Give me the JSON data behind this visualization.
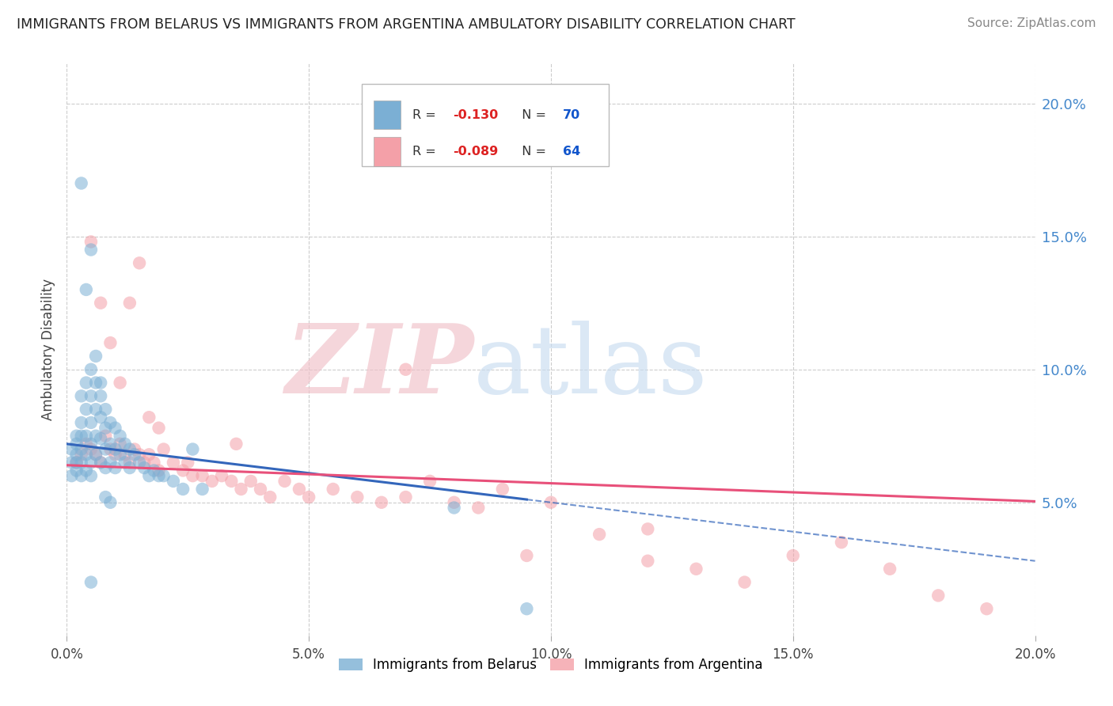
{
  "title": "IMMIGRANTS FROM BELARUS VS IMMIGRANTS FROM ARGENTINA AMBULATORY DISABILITY CORRELATION CHART",
  "source": "Source: ZipAtlas.com",
  "ylabel": "Ambulatory Disability",
  "xlim": [
    0.0,
    0.2
  ],
  "ylim": [
    0.0,
    0.215
  ],
  "xticks": [
    0.0,
    0.05,
    0.1,
    0.15,
    0.2
  ],
  "xticklabels": [
    "0.0%",
    "5.0%",
    "10.0%",
    "15.0%",
    "20.0%"
  ],
  "yticks_right": [
    0.05,
    0.1,
    0.15,
    0.2
  ],
  "ytick_labels_right": [
    "5.0%",
    "10.0%",
    "15.0%",
    "20.0%"
  ],
  "blue_color": "#7BAFD4",
  "pink_color": "#F4A0A8",
  "blue_line_color": "#3366BB",
  "pink_line_color": "#E8507A",
  "blue_R": -0.13,
  "blue_N": 70,
  "pink_R": -0.089,
  "pink_N": 64,
  "blue_intercept": 0.072,
  "blue_slope": -0.22,
  "pink_intercept": 0.064,
  "pink_slope": -0.068,
  "watermark_zip": "ZIP",
  "watermark_atlas": "atlas",
  "background_color": "#ffffff",
  "grid_color": "#cccccc",
  "right_axis_color": "#4488CC",
  "legend_label_blue": "Immigrants from Belarus",
  "legend_label_pink": "Immigrants from Argentina",
  "blue_scatter_x": [
    0.001,
    0.001,
    0.001,
    0.002,
    0.002,
    0.002,
    0.002,
    0.002,
    0.003,
    0.003,
    0.003,
    0.003,
    0.003,
    0.003,
    0.004,
    0.004,
    0.004,
    0.004,
    0.004,
    0.005,
    0.005,
    0.005,
    0.005,
    0.005,
    0.005,
    0.006,
    0.006,
    0.006,
    0.006,
    0.007,
    0.007,
    0.007,
    0.007,
    0.008,
    0.008,
    0.008,
    0.008,
    0.009,
    0.009,
    0.009,
    0.01,
    0.01,
    0.01,
    0.011,
    0.011,
    0.012,
    0.012,
    0.013,
    0.013,
    0.014,
    0.015,
    0.016,
    0.017,
    0.018,
    0.019,
    0.02,
    0.022,
    0.024,
    0.026,
    0.028,
    0.003,
    0.004,
    0.005,
    0.006,
    0.007,
    0.008,
    0.009,
    0.08,
    0.095,
    0.005
  ],
  "blue_scatter_y": [
    0.07,
    0.065,
    0.06,
    0.075,
    0.072,
    0.068,
    0.065,
    0.062,
    0.09,
    0.08,
    0.075,
    0.07,
    0.065,
    0.06,
    0.095,
    0.085,
    0.075,
    0.068,
    0.062,
    0.1,
    0.09,
    0.08,
    0.072,
    0.065,
    0.06,
    0.095,
    0.085,
    0.075,
    0.068,
    0.09,
    0.082,
    0.074,
    0.065,
    0.085,
    0.078,
    0.07,
    0.063,
    0.08,
    0.072,
    0.065,
    0.078,
    0.07,
    0.063,
    0.075,
    0.068,
    0.072,
    0.065,
    0.07,
    0.063,
    0.068,
    0.065,
    0.063,
    0.06,
    0.062,
    0.06,
    0.06,
    0.058,
    0.055,
    0.07,
    0.055,
    0.17,
    0.13,
    0.145,
    0.105,
    0.095,
    0.052,
    0.05,
    0.048,
    0.01,
    0.02
  ],
  "pink_scatter_x": [
    0.002,
    0.003,
    0.004,
    0.005,
    0.006,
    0.007,
    0.008,
    0.009,
    0.01,
    0.011,
    0.012,
    0.013,
    0.014,
    0.015,
    0.016,
    0.017,
    0.018,
    0.019,
    0.02,
    0.022,
    0.024,
    0.026,
    0.028,
    0.03,
    0.032,
    0.034,
    0.036,
    0.038,
    0.04,
    0.042,
    0.045,
    0.048,
    0.05,
    0.055,
    0.06,
    0.065,
    0.07,
    0.075,
    0.08,
    0.085,
    0.09,
    0.095,
    0.1,
    0.11,
    0.12,
    0.13,
    0.14,
    0.15,
    0.16,
    0.17,
    0.005,
    0.007,
    0.009,
    0.011,
    0.013,
    0.015,
    0.017,
    0.019,
    0.025,
    0.035,
    0.19,
    0.18,
    0.07,
    0.12
  ],
  "pink_scatter_y": [
    0.065,
    0.068,
    0.072,
    0.07,
    0.068,
    0.065,
    0.075,
    0.07,
    0.068,
    0.072,
    0.068,
    0.065,
    0.07,
    0.068,
    0.065,
    0.068,
    0.065,
    0.062,
    0.07,
    0.065,
    0.062,
    0.06,
    0.06,
    0.058,
    0.06,
    0.058,
    0.055,
    0.058,
    0.055,
    0.052,
    0.058,
    0.055,
    0.052,
    0.055,
    0.052,
    0.05,
    0.052,
    0.058,
    0.05,
    0.048,
    0.055,
    0.03,
    0.05,
    0.038,
    0.028,
    0.025,
    0.02,
    0.03,
    0.035,
    0.025,
    0.148,
    0.125,
    0.11,
    0.095,
    0.125,
    0.14,
    0.082,
    0.078,
    0.065,
    0.072,
    0.01,
    0.015,
    0.1,
    0.04
  ]
}
